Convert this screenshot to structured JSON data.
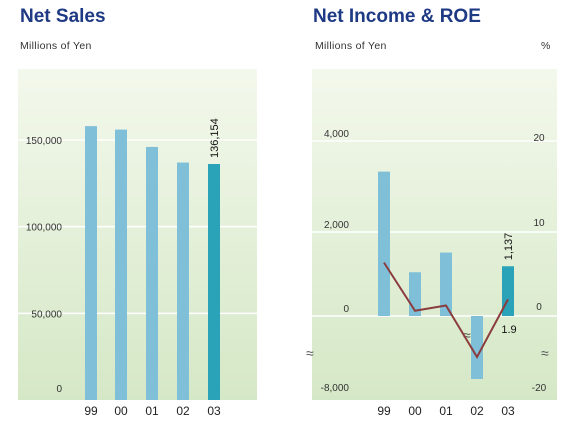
{
  "chart_data": [
    {
      "type": "bar",
      "title": "Net Sales",
      "unit": "Millions of Yen",
      "categories": [
        "99",
        "00",
        "01",
        "02",
        "03"
      ],
      "values": [
        158000,
        156000,
        146000,
        137000,
        136154
      ],
      "highlight_index": 4,
      "data_labels": {
        "4": "136,154"
      },
      "yticks": [
        0,
        50000,
        100000,
        150000
      ],
      "ytick_labels": [
        "0",
        "50,000",
        "100,000",
        "150,000"
      ],
      "ylim": [
        0,
        190000
      ],
      "grid": true
    },
    {
      "type": "bar+line",
      "title": "Net Income & ROE",
      "unit_left": "Millions of Yen",
      "unit_right": "%",
      "categories": [
        "99",
        "00",
        "01",
        "02",
        "03"
      ],
      "bar_values": [
        3300,
        1000,
        1450,
        -7500,
        1137
      ],
      "bar_data_labels": {
        "4": "1,137"
      },
      "line_values": [
        6.1,
        0.6,
        1.2,
        -10.0,
        1.9
      ],
      "line_data_labels": {
        "4": "1.9"
      },
      "highlight_index": 4,
      "yticks_left": [
        "4,000",
        "2,000",
        "0",
        "-8,000"
      ],
      "yticks_right": [
        "20",
        "10",
        "0",
        "-20"
      ],
      "axis_break": true,
      "grid": true
    }
  ],
  "colors": {
    "bar": "#7fbfd8",
    "bar_highlight": "#2aa2b8",
    "line": "#8b3d3d",
    "bg_top": "#f3f8ec",
    "bg_bottom": "#d5e8c6",
    "title": "#1f3a84"
  }
}
